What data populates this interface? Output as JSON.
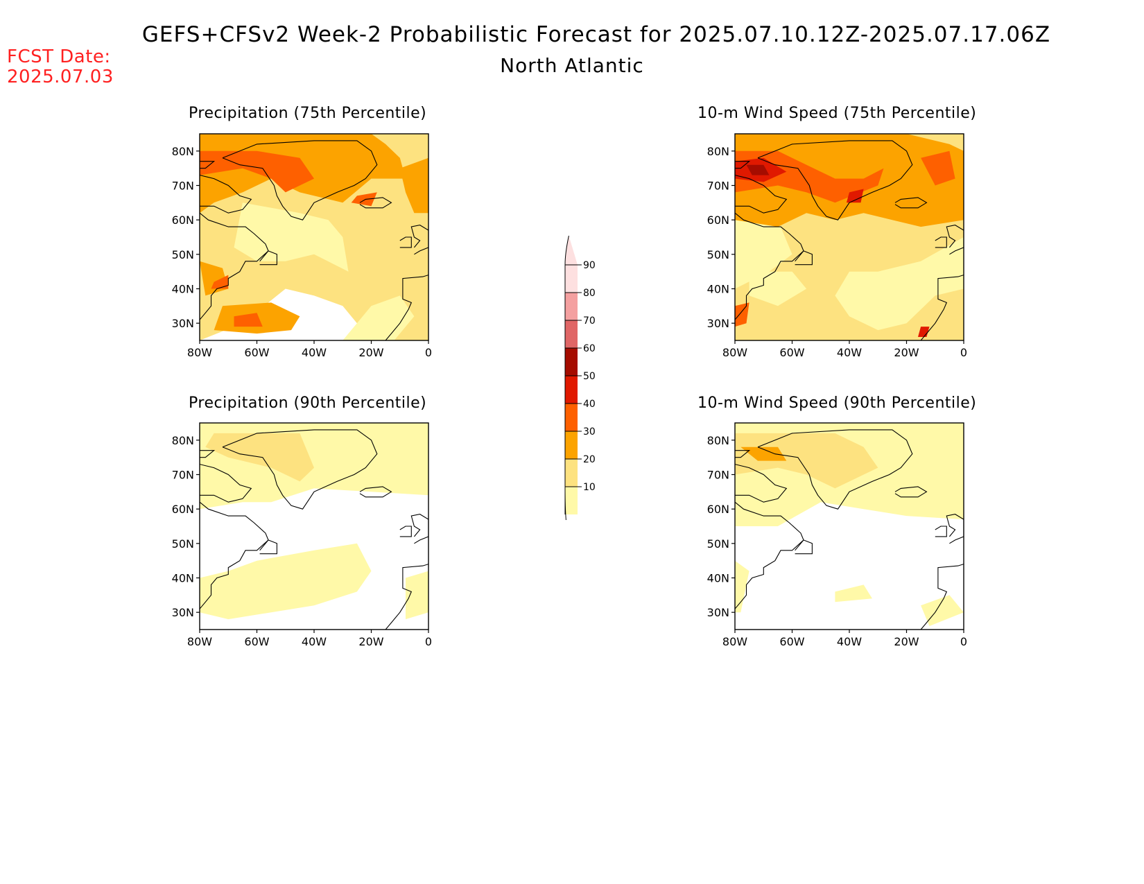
{
  "header": {
    "title": "GEFS+CFSv2 Week-2 Probabilistic Forecast for 2025.07.10.12Z-2025.07.17.06Z",
    "subtitle": "North Atlantic",
    "fcst_label": "FCST Date:",
    "fcst_date": "2025.07.03"
  },
  "colors": {
    "c10": "#fff9a8",
    "c20": "#fde280",
    "c30": "#fca300",
    "c40": "#fe6000",
    "c50": "#e01900",
    "c60": "#a50c00",
    "c70": "#e06666",
    "c80": "#f4a0a0",
    "c90": "#fde0e0",
    "coast": "#000000",
    "title_red": "#ff2020"
  },
  "axes": {
    "lat_labels": [
      "80N",
      "70N",
      "60N",
      "50N",
      "40N",
      "30N"
    ],
    "lon_labels": [
      "80W",
      "60W",
      "40W",
      "20W",
      "0"
    ]
  },
  "panels": [
    {
      "id": "precip75",
      "title": "Precipitation (75th Percentile)",
      "level": 3
    },
    {
      "id": "wind75",
      "title": "10-m Wind Speed (75th Percentile)",
      "level": 4
    },
    {
      "id": "precip90",
      "title": "Precipitation (90th Percentile)",
      "level": 1
    },
    {
      "id": "wind90",
      "title": "10-m Wind Speed (90th Percentile)",
      "level": 2
    }
  ],
  "colorbar": {
    "labels": [
      "90",
      "80",
      "70",
      "60",
      "50",
      "40",
      "30",
      "20",
      "10"
    ]
  }
}
